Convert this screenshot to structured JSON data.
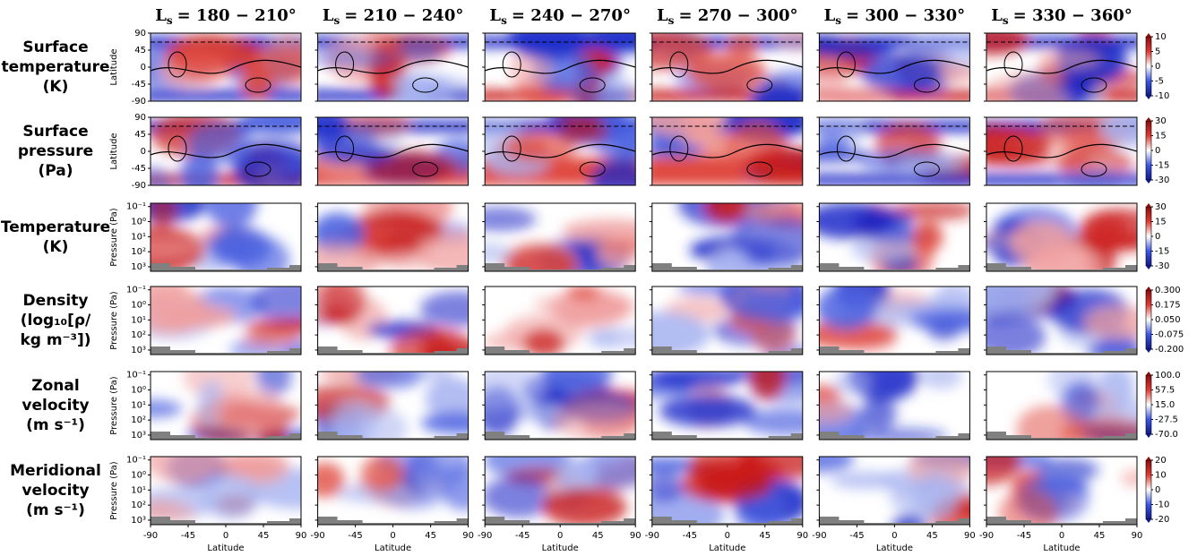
{
  "column_titles": [
    {
      "symbol": "L",
      "subscript": "s",
      "text": "= 180 − 210°"
    },
    {
      "symbol": "L",
      "subscript": "s",
      "text": "= 210 − 240°"
    },
    {
      "symbol": "L",
      "subscript": "s",
      "text": "= 240 − 270°"
    },
    {
      "symbol": "L",
      "subscript": "s",
      "text": "= 270 − 300°"
    },
    {
      "symbol": "L",
      "subscript": "s",
      "text": "= 300 − 330°"
    },
    {
      "symbol": "L",
      "subscript": "s",
      "text": "= 330 − 360°"
    }
  ],
  "x_axis": {
    "label": "Latitude",
    "lim": [
      -90,
      90
    ],
    "ticks": [
      -90,
      -45,
      0,
      45,
      90
    ]
  },
  "map_axis": {
    "label": "Latitude",
    "lim": [
      -90,
      90
    ],
    "ticks": [
      90,
      45,
      0,
      -45,
      -90
    ]
  },
  "pressure_axis": {
    "label": "Pressure (Pa)",
    "lim": [
      2000,
      0.06
    ],
    "log": true,
    "ticks": [
      {
        "value": 0.1,
        "label": "10⁻¹"
      },
      {
        "value": 1,
        "label": "10⁰"
      },
      {
        "value": 10,
        "label": "10¹"
      },
      {
        "value": 100,
        "label": "10²"
      },
      {
        "value": 1000,
        "label": "10³"
      }
    ]
  },
  "rows": [
    {
      "label": [
        "Surface",
        "temperature",
        "(K)"
      ],
      "axis": "map_axis",
      "colorbar": {
        "lim": [
          -10,
          10
        ],
        "ticks": [
          10,
          5,
          0,
          -5,
          -10
        ]
      }
    },
    {
      "label": [
        "Surface",
        "pressure",
        "(Pa)"
      ],
      "axis": "map_axis",
      "colorbar": {
        "lim": [
          -30,
          30
        ],
        "ticks": [
          30,
          15,
          0,
          -15,
          -30
        ]
      }
    },
    {
      "label": [
        "Temperature",
        "(K)"
      ],
      "axis": "pressure_axis",
      "colorbar": {
        "lim": [
          -30,
          30
        ],
        "ticks": [
          30,
          15,
          0,
          -15,
          -30
        ]
      }
    },
    {
      "label": [
        "Density",
        "(log₁₀[ρ/",
        "kg m⁻³])"
      ],
      "axis": "pressure_axis",
      "colorbar": {
        "lim": [
          -0.2,
          0.3
        ],
        "ticks": [
          {
            "value": 0.3,
            "label": "0.300"
          },
          0.175,
          {
            "value": 0.05,
            "label": "0.050"
          },
          -0.075,
          {
            "value": -0.2,
            "label": "-0.200"
          }
        ]
      }
    },
    {
      "label": [
        "Zonal",
        "velocity",
        "(m s⁻¹)"
      ],
      "axis": "pressure_axis",
      "colorbar": {
        "lim": [
          -70,
          100
        ],
        "ticks": [
          {
            "value": 100,
            "label": "100.0"
          },
          57.5,
          {
            "value": 15,
            "label": "15.0"
          },
          -27.5,
          {
            "value": -70,
            "label": "-70.0"
          }
        ]
      }
    },
    {
      "label": [
        "Meridional",
        "velocity",
        "(m s⁻¹)"
      ],
      "axis": "pressure_axis",
      "colorbar": {
        "lim": [
          -20,
          20
        ],
        "ticks": [
          20,
          10,
          0,
          -10,
          -20
        ]
      }
    }
  ]
}
